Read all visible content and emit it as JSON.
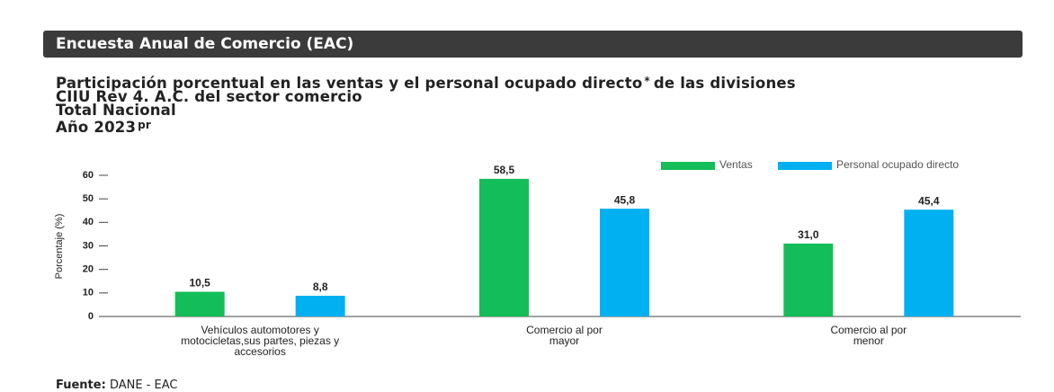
{
  "header": {
    "title": "Encuesta Anual de Comercio (EAC)"
  },
  "heading": {
    "line1": "Participación porcentual en las ventas y el personal ocupado directo",
    "line1_mark": "*",
    "line1_end": "de las divisiones",
    "line2": "CIIU Rev 4. A.C. del sector comercio",
    "line3": "Total Nacional",
    "line4": "Año 2023",
    "line4_mark": "pr"
  },
  "chart_data": {
    "type": "bar",
    "categories": [
      "Vehículos automotores y motocicletas,sus partes, piezas y accesorios",
      "Comercio al por mayor",
      "Comercio al por menor"
    ],
    "series": [
      {
        "name": "Ventas",
        "color": "#13be5a",
        "values": [
          10.5,
          58.5,
          31.0
        ],
        "value_labels": [
          "10,5",
          "58,5",
          "31,0"
        ]
      },
      {
        "name": "Personal ocupado directo",
        "color": "#00b0f0",
        "values": [
          8.8,
          45.8,
          45.4
        ],
        "value_labels": [
          "8,8",
          "45,8",
          "45,4"
        ]
      }
    ],
    "y_label": "Porcentaje (%)",
    "ylim": [
      0,
      60
    ],
    "yticks": [
      0,
      10,
      20,
      30,
      40,
      50,
      60
    ],
    "legend": "top-right"
  },
  "source": {
    "label": "Fuente:",
    "text": "DANE - EAC"
  }
}
